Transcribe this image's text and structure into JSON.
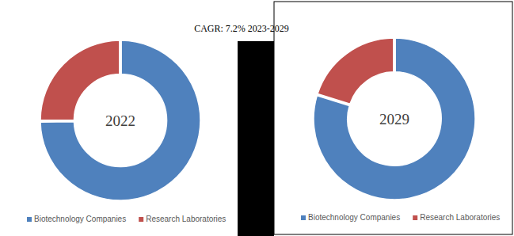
{
  "title": "CAGR: 7.2% 2023-2029",
  "chart_data": [
    {
      "type": "pie",
      "title": "2022",
      "categories": [
        "Biotechnology Companies",
        "Research Laboratories"
      ],
      "values": [
        75,
        25
      ],
      "colors": [
        "#4f81bd",
        "#c0504d"
      ],
      "legend": "bottom"
    },
    {
      "type": "pie",
      "title": "2029",
      "categories": [
        "Biotechnology Companies",
        "Research Laboratories"
      ],
      "values": [
        80,
        20
      ],
      "colors": [
        "#4f81bd",
        "#c0504d"
      ],
      "legend": "bottom"
    }
  ]
}
